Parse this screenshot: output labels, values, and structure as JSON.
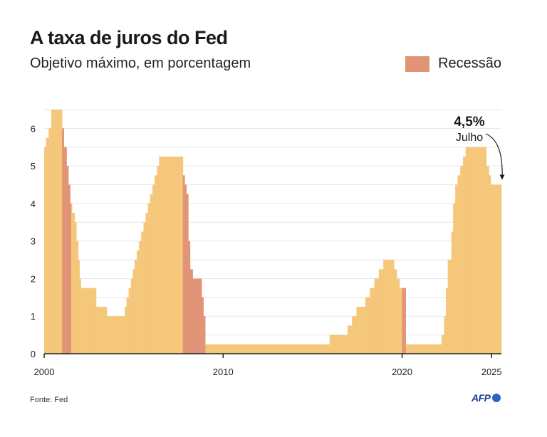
{
  "title": "A taxa de juros do Fed",
  "subtitle": "Objetivo máximo, em porcentagem",
  "source": "Fonte: Fed",
  "logo_text": "AFP",
  "colors": {
    "rate": "#f5c77a",
    "recession": "#e29478",
    "grid": "#e6e6e6",
    "axis": "#222222"
  },
  "legend": {
    "label": "Recessão"
  },
  "annotation": {
    "value": "4,5%",
    "label": "Julho",
    "x": 2025.55,
    "y": 4.5
  },
  "chart_data": {
    "type": "area",
    "title": "A taxa de juros do Fed",
    "subtitle": "Objetivo máximo, em porcentagem",
    "xlabel": "",
    "ylabel": "",
    "xlim": [
      2000,
      2025.55
    ],
    "ylim": [
      0,
      6.5
    ],
    "x_ticks": [
      2000,
      2010,
      2020,
      2025
    ],
    "x_tick_labels": [
      "2000",
      "2010",
      "2020",
      "2025"
    ],
    "y_ticks": [
      0,
      1,
      2,
      3,
      4,
      5,
      6
    ],
    "y_tick_labels": [
      "0",
      "1",
      "2",
      "3",
      "4",
      "5",
      "6"
    ],
    "grid": true,
    "legend_position": "top-right",
    "series": [
      {
        "steps": [
          [
            2000.0,
            5.5
          ],
          [
            2000.1,
            5.75
          ],
          [
            2000.25,
            6.0
          ],
          [
            2000.4,
            6.5
          ],
          [
            2001.0,
            6.0
          ],
          [
            2001.1,
            5.5
          ],
          [
            2001.25,
            5.0
          ],
          [
            2001.35,
            4.5
          ],
          [
            2001.45,
            4.0
          ],
          [
            2001.55,
            3.75
          ],
          [
            2001.7,
            3.5
          ],
          [
            2001.8,
            3.0
          ],
          [
            2001.9,
            2.5
          ],
          [
            2001.97,
            2.0
          ],
          [
            2002.05,
            1.75
          ],
          [
            2002.9,
            1.25
          ],
          [
            2003.5,
            1.0
          ],
          [
            2004.5,
            1.25
          ],
          [
            2004.6,
            1.5
          ],
          [
            2004.72,
            1.75
          ],
          [
            2004.85,
            2.0
          ],
          [
            2004.95,
            2.25
          ],
          [
            2005.05,
            2.5
          ],
          [
            2005.17,
            2.75
          ],
          [
            2005.3,
            3.0
          ],
          [
            2005.42,
            3.25
          ],
          [
            2005.55,
            3.5
          ],
          [
            2005.67,
            3.75
          ],
          [
            2005.8,
            4.0
          ],
          [
            2005.92,
            4.25
          ],
          [
            2006.05,
            4.5
          ],
          [
            2006.17,
            4.75
          ],
          [
            2006.3,
            5.0
          ],
          [
            2006.42,
            5.25
          ],
          [
            2007.75,
            4.75
          ],
          [
            2007.85,
            4.5
          ],
          [
            2007.95,
            4.25
          ],
          [
            2008.05,
            3.0
          ],
          [
            2008.15,
            2.25
          ],
          [
            2008.3,
            2.0
          ],
          [
            2008.8,
            1.5
          ],
          [
            2008.9,
            1.0
          ],
          [
            2009.0,
            0.25
          ],
          [
            2015.95,
            0.5
          ],
          [
            2016.95,
            0.75
          ],
          [
            2017.2,
            1.0
          ],
          [
            2017.45,
            1.25
          ],
          [
            2017.95,
            1.5
          ],
          [
            2018.2,
            1.75
          ],
          [
            2018.45,
            2.0
          ],
          [
            2018.7,
            2.25
          ],
          [
            2018.95,
            2.5
          ],
          [
            2019.55,
            2.25
          ],
          [
            2019.7,
            2.0
          ],
          [
            2019.85,
            1.75
          ],
          [
            2020.2,
            0.25
          ],
          [
            2022.2,
            0.5
          ],
          [
            2022.35,
            1.0
          ],
          [
            2022.45,
            1.75
          ],
          [
            2022.55,
            2.5
          ],
          [
            2022.75,
            3.25
          ],
          [
            2022.85,
            4.0
          ],
          [
            2022.97,
            4.5
          ],
          [
            2023.1,
            4.75
          ],
          [
            2023.25,
            5.0
          ],
          [
            2023.4,
            5.25
          ],
          [
            2023.55,
            5.5
          ],
          [
            2024.7,
            5.0
          ],
          [
            2024.85,
            4.75
          ],
          [
            2024.95,
            4.5
          ]
        ]
      }
    ],
    "recessions": [
      {
        "start": 2001.0,
        "end": 2001.5
      },
      {
        "start": 2007.75,
        "end": 2009.0
      },
      {
        "start": 2020.0,
        "end": 2020.2
      }
    ]
  }
}
